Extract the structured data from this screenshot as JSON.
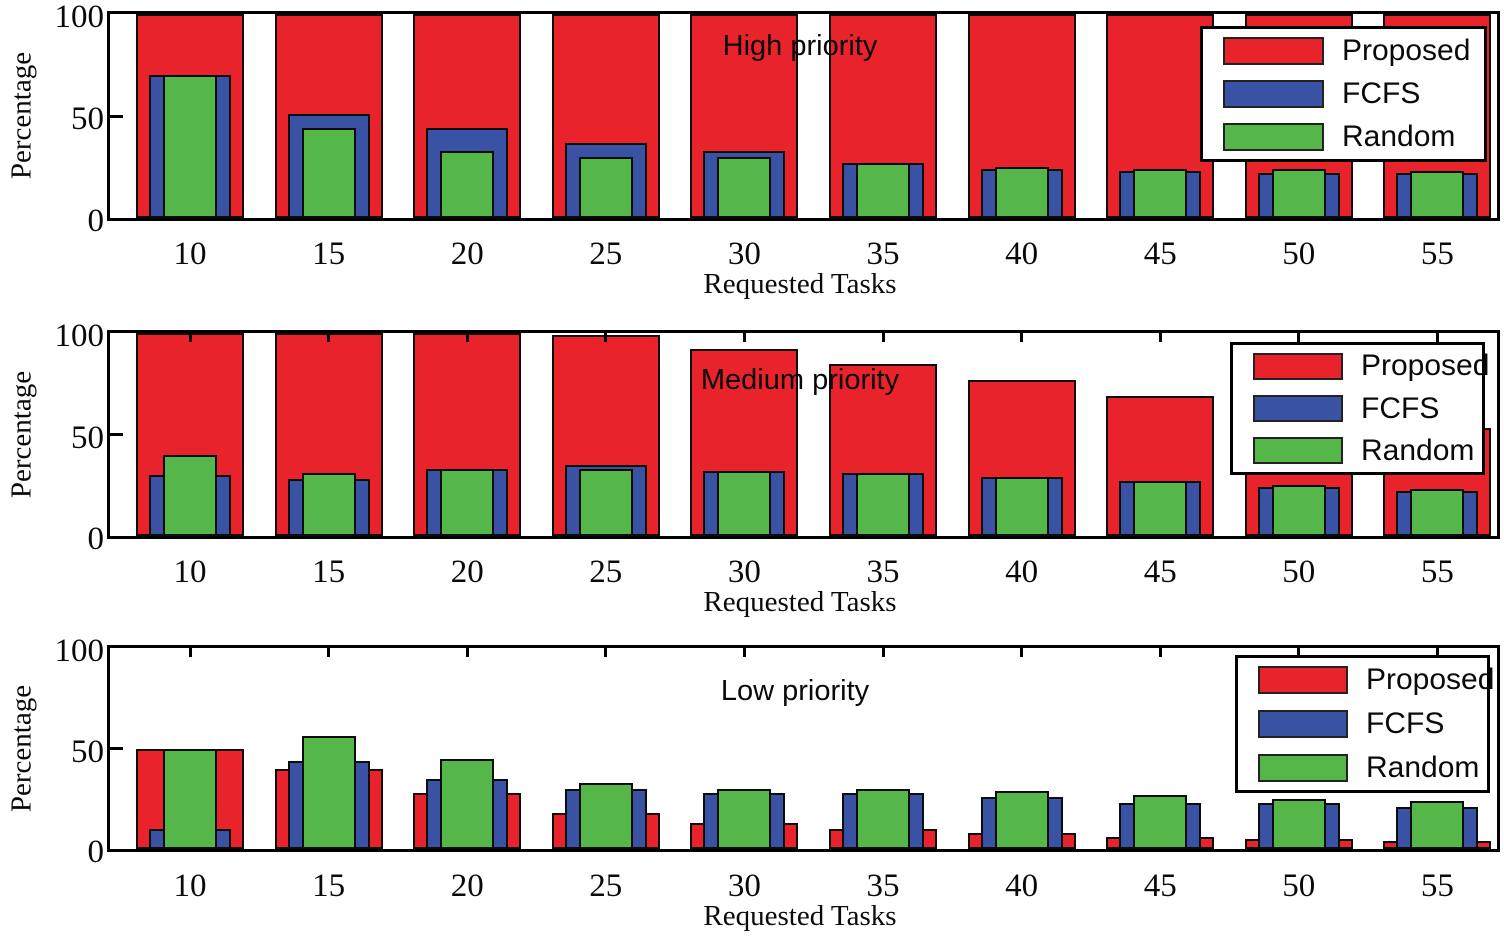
{
  "figure": {
    "background": "#ffffff",
    "colors": {
      "proposed": "#E9232C",
      "fcfs": "#3A52A4",
      "random": "#55B74A",
      "axis": "#000000",
      "legend_background": "#FFFFFF"
    },
    "yticklabels": [
      "100",
      "50",
      "0"
    ],
    "legend": {
      "labels": [
        "Proposed",
        "FCFS",
        "Random"
      ]
    }
  },
  "chart_data": [
    {
      "type": "bar",
      "title": "High priority",
      "xlabel": "Requested Tasks",
      "ylabel": "Percentage",
      "ylim": [
        0,
        100
      ],
      "yticks": [
        0,
        50,
        100
      ],
      "grid": false,
      "legend_position": "upper right",
      "bar_style": "overlaid-nested",
      "categories": [
        "10",
        "15",
        "20",
        "25",
        "30",
        "35",
        "40",
        "45",
        "50",
        "55"
      ],
      "series": [
        {
          "name": "Proposed",
          "color_key": "proposed",
          "values": [
            100,
            100,
            100,
            100,
            100,
            100,
            100,
            100,
            100,
            100
          ]
        },
        {
          "name": "FCFS",
          "color_key": "fcfs",
          "values": [
            70,
            51,
            44,
            37,
            33,
            27,
            24,
            23,
            22,
            22
          ]
        },
        {
          "name": "Random",
          "color_key": "random",
          "values": [
            70,
            44,
            33,
            30,
            30,
            27,
            25,
            24,
            24,
            23
          ]
        }
      ]
    },
    {
      "type": "bar",
      "title": "Medium priority",
      "xlabel": "Requested Tasks",
      "ylabel": "Percentage",
      "ylim": [
        0,
        100
      ],
      "yticks": [
        0,
        50,
        100
      ],
      "grid": false,
      "legend_position": "upper right",
      "bar_style": "overlaid-nested",
      "categories": [
        "10",
        "15",
        "20",
        "25",
        "30",
        "35",
        "40",
        "45",
        "50",
        "55"
      ],
      "series": [
        {
          "name": "Proposed",
          "color_key": "proposed",
          "values": [
            100,
            100,
            100,
            99,
            92,
            85,
            77,
            69,
            61,
            53
          ]
        },
        {
          "name": "FCFS",
          "color_key": "fcfs",
          "values": [
            30,
            28,
            33,
            35,
            32,
            31,
            29,
            27,
            24,
            22
          ]
        },
        {
          "name": "Random",
          "color_key": "random",
          "values": [
            40,
            31,
            33,
            33,
            32,
            31,
            29,
            27,
            25,
            23
          ]
        }
      ]
    },
    {
      "type": "bar",
      "title": "Low priority",
      "xlabel": "Requested Tasks",
      "ylabel": "Percentage",
      "ylim": [
        0,
        100
      ],
      "yticks": [
        0,
        50,
        100
      ],
      "grid": false,
      "legend_position": "upper right",
      "bar_style": "overlaid-nested",
      "categories": [
        "10",
        "15",
        "20",
        "25",
        "30",
        "35",
        "40",
        "45",
        "50",
        "55"
      ],
      "series": [
        {
          "name": "Proposed",
          "color_key": "proposed",
          "values": [
            50,
            40,
            28,
            18,
            13,
            10,
            8,
            6,
            5,
            4
          ]
        },
        {
          "name": "FCFS",
          "color_key": "fcfs",
          "values": [
            10,
            44,
            35,
            30,
            28,
            28,
            26,
            23,
            23,
            21
          ]
        },
        {
          "name": "Random",
          "color_key": "random",
          "values": [
            50,
            56,
            45,
            33,
            30,
            30,
            29,
            27,
            25,
            24
          ]
        }
      ]
    }
  ]
}
